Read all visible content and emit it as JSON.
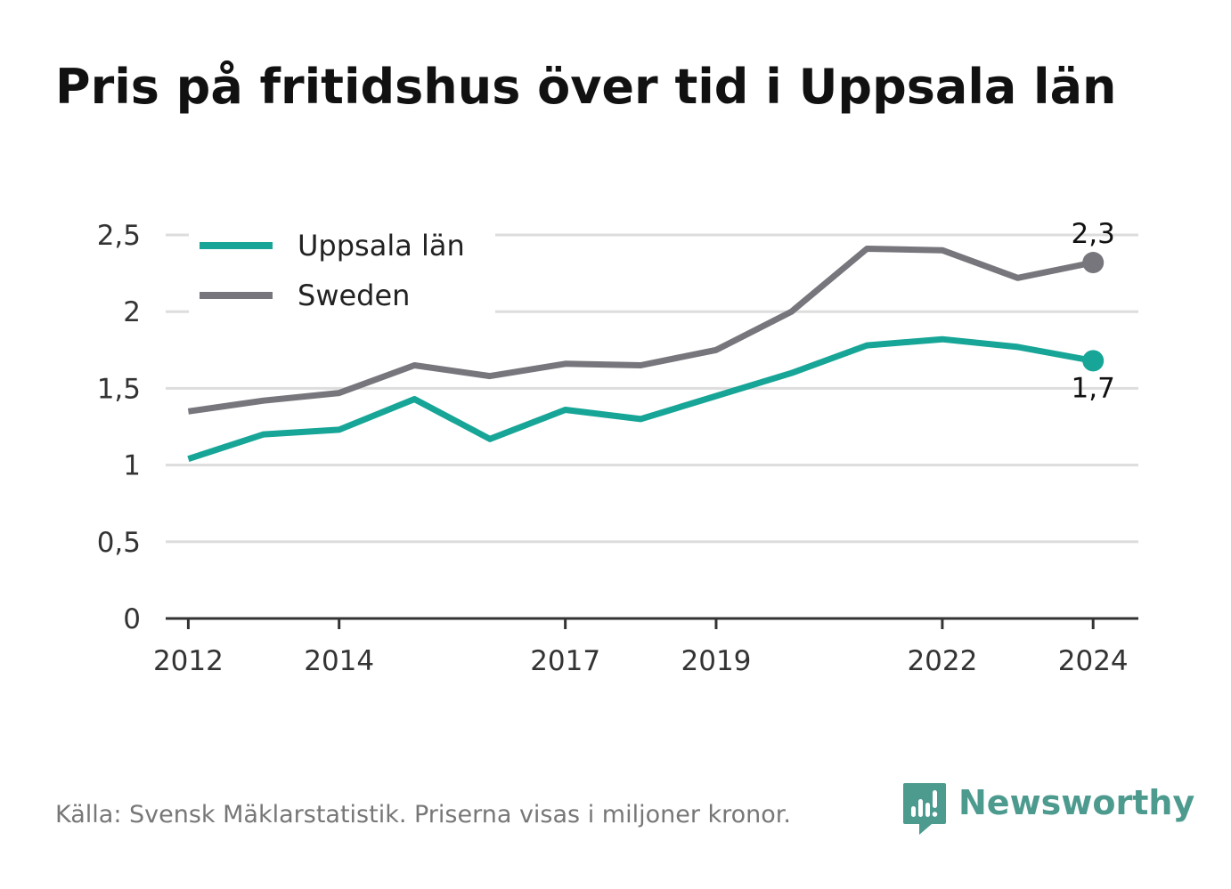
{
  "title": "Pris på fritidshus över tid i Uppsala län",
  "source": "Källa: Svensk Mäklarstatistik. Priserna visas i miljoner kronor.",
  "brand": {
    "name": "Newsworthy",
    "icon": "newsworthy-logo-icon",
    "color": "#4d9a8e"
  },
  "chart_data": {
    "type": "line",
    "title": "Pris på fritidshus över tid i Uppsala län",
    "xlabel": "",
    "ylabel": "",
    "x": [
      2012,
      2013,
      2014,
      2015,
      2016,
      2017,
      2018,
      2019,
      2020,
      2021,
      2022,
      2023,
      2024
    ],
    "x_ticks": [
      "2012",
      "2014",
      "2017",
      "2019",
      "2022",
      "2024"
    ],
    "y_ticks": [
      "0",
      "0,5",
      "1",
      "1,5",
      "2",
      "2,5"
    ],
    "xlim": [
      2011.7,
      2024.6
    ],
    "ylim": [
      0,
      2.5
    ],
    "grid": true,
    "legend": "top-left",
    "series": [
      {
        "name": "Uppsala län",
        "color": "#16a596",
        "values": [
          1.04,
          1.2,
          1.23,
          1.43,
          1.17,
          1.36,
          1.3,
          1.45,
          1.6,
          1.78,
          1.82,
          1.77,
          1.68
        ],
        "end_label": "1,7"
      },
      {
        "name": "Sweden",
        "color": "#77767c",
        "values": [
          1.35,
          1.42,
          1.47,
          1.65,
          1.58,
          1.66,
          1.65,
          1.75,
          2.0,
          2.41,
          2.4,
          2.22,
          2.32
        ],
        "end_label": "2,3"
      }
    ]
  }
}
